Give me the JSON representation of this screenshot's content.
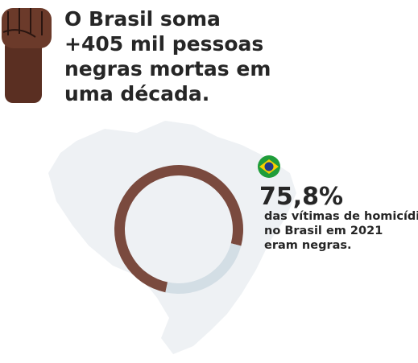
{
  "chart_data": {
    "type": "donut",
    "title_lines": [
      "O Brasil soma",
      "+405 mil pessoas",
      "negras mortas em",
      "uma década."
    ],
    "values": [
      75.8,
      24.2
    ],
    "value_labels": [
      "75,8%",
      null
    ],
    "colors": [
      "#7a4a3e",
      "#d3dee5"
    ],
    "annotation_lines": [
      "das vítimas de homicídio",
      "no Brasil em 2021",
      "eram negras."
    ]
  }
}
